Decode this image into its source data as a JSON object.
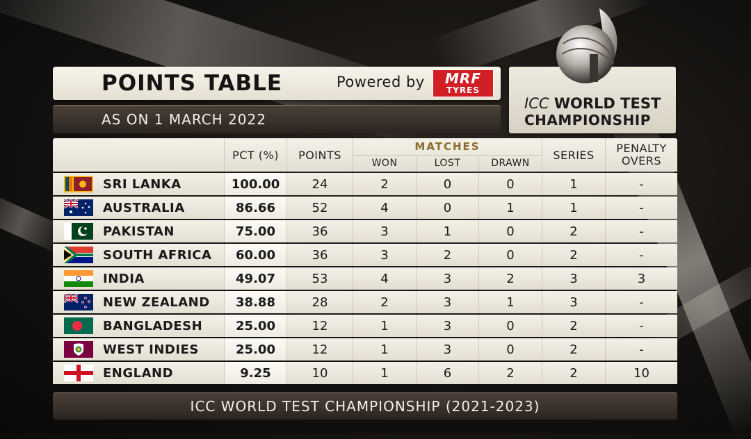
{
  "header": {
    "title": "POINTS TABLE",
    "powered_by": "Powered by",
    "sponsor_logo_top": "MRF",
    "sponsor_logo_bottom": "TYRES",
    "as_on": "AS ON 1 MARCH 2022"
  },
  "brand": {
    "line1_prefix": "ICC",
    "line1": "WORLD TEST",
    "line2": "CHAMPIONSHIP",
    "trophy_icon": "wtc-mace-trophy-icon"
  },
  "columns": {
    "pct": "PCT (%)",
    "points": "POINTS",
    "matches": "MATCHES",
    "won": "WON",
    "lost": "LOST",
    "drawn": "DRAWN",
    "series": "SERIES",
    "penalty_line1": "PENALTY",
    "penalty_line2": "OVERS"
  },
  "rows": [
    {
      "team": "SRI LANKA",
      "flag": "sri-lanka-flag-icon",
      "pct": "100.00",
      "points": "24",
      "won": "2",
      "lost": "0",
      "drawn": "0",
      "series": "1",
      "penalty": "-"
    },
    {
      "team": "AUSTRALIA",
      "flag": "australia-flag-icon",
      "pct": "86.66",
      "points": "52",
      "won": "4",
      "lost": "0",
      "drawn": "1",
      "series": "1",
      "penalty": "-"
    },
    {
      "team": "PAKISTAN",
      "flag": "pakistan-flag-icon",
      "pct": "75.00",
      "points": "36",
      "won": "3",
      "lost": "1",
      "drawn": "0",
      "series": "2",
      "penalty": "-"
    },
    {
      "team": "SOUTH AFRICA",
      "flag": "south-africa-flag-icon",
      "pct": "60.00",
      "points": "36",
      "won": "3",
      "lost": "2",
      "drawn": "0",
      "series": "2",
      "penalty": "-"
    },
    {
      "team": "INDIA",
      "flag": "india-flag-icon",
      "pct": "49.07",
      "points": "53",
      "won": "4",
      "lost": "3",
      "drawn": "2",
      "series": "3",
      "penalty": "3"
    },
    {
      "team": "NEW ZEALAND",
      "flag": "new-zealand-flag-icon",
      "pct": "38.88",
      "points": "28",
      "won": "2",
      "lost": "3",
      "drawn": "1",
      "series": "3",
      "penalty": "-"
    },
    {
      "team": "BANGLADESH",
      "flag": "bangladesh-flag-icon",
      "pct": "25.00",
      "points": "12",
      "won": "1",
      "lost": "3",
      "drawn": "0",
      "series": "2",
      "penalty": "-"
    },
    {
      "team": "WEST INDIES",
      "flag": "west-indies-flag-icon",
      "pct": "25.00",
      "points": "12",
      "won": "1",
      "lost": "3",
      "drawn": "0",
      "series": "2",
      "penalty": "-"
    },
    {
      "team": "ENGLAND",
      "flag": "england-flag-icon",
      "pct": "9.25",
      "points": "10",
      "won": "1",
      "lost": "6",
      "drawn": "2",
      "series": "2",
      "penalty": "10"
    }
  ],
  "footer": "ICC WORLD TEST CHAMPIONSHIP (2021-2023)",
  "colors": {
    "sponsor_red": "#d21f26",
    "matches_gold": "#8a6d2c",
    "panel_light": "#f3f0e7",
    "panel_dark": "#2b241f"
  }
}
